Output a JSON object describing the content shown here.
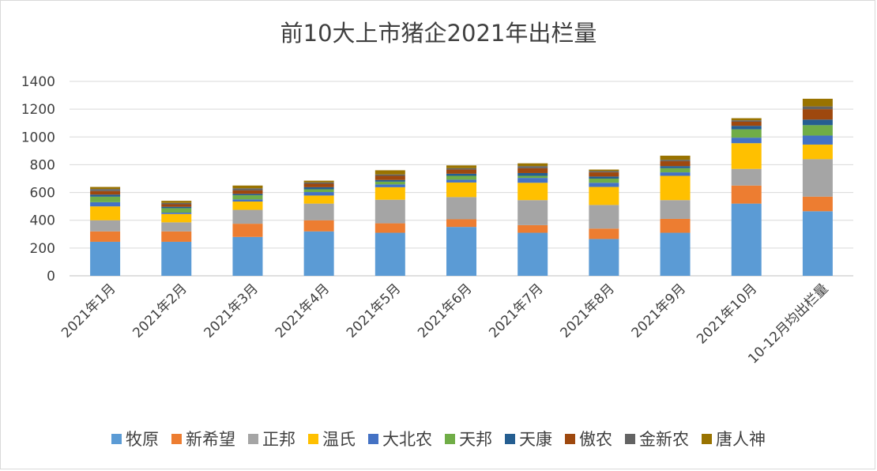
{
  "chart_data": {
    "type": "bar",
    "stacked": true,
    "title": "前10大上市猪企2021年出栏量",
    "xlabel": "",
    "ylabel": "",
    "ylim": [
      0,
      1400
    ],
    "yticks": [
      0,
      200,
      400,
      600,
      800,
      1000,
      1200,
      1400
    ],
    "grid": true,
    "legend_position": "bottom",
    "categories": [
      "2021年1月",
      "2021年2月",
      "2021年3月",
      "2021年4月",
      "2021年5月",
      "2021年6月",
      "2021年7月",
      "2021年8月",
      "2021年9月",
      "2021年10月",
      "10-12月均出栏量"
    ],
    "series": [
      {
        "name": "牧原",
        "color": "#5b9bd5",
        "values": [
          245,
          245,
          280,
          320,
          310,
          352,
          310,
          265,
          310,
          520,
          465
        ]
      },
      {
        "name": "新希望",
        "color": "#ed7d31",
        "values": [
          75,
          75,
          95,
          80,
          68,
          55,
          55,
          75,
          100,
          130,
          105
        ]
      },
      {
        "name": "正邦",
        "color": "#a5a5a5",
        "values": [
          80,
          65,
          100,
          120,
          170,
          160,
          180,
          170,
          135,
          120,
          270
        ]
      },
      {
        "name": "温氏",
        "color": "#ffc000",
        "values": [
          100,
          60,
          60,
          58,
          90,
          105,
          125,
          130,
          175,
          185,
          105
        ]
      },
      {
        "name": "大北农",
        "color": "#4472c4",
        "values": [
          30,
          10,
          15,
          25,
          20,
          20,
          35,
          30,
          25,
          40,
          65
        ]
      },
      {
        "name": "天邦",
        "color": "#70ad47",
        "values": [
          40,
          32,
          30,
          20,
          20,
          28,
          15,
          30,
          30,
          60,
          75
        ]
      },
      {
        "name": "天康",
        "color": "#255e91",
        "values": [
          15,
          10,
          10,
          15,
          12,
          15,
          20,
          15,
          15,
          25,
          40
        ]
      },
      {
        "name": "傲农",
        "color": "#9e480e",
        "values": [
          25,
          18,
          25,
          25,
          30,
          30,
          35,
          30,
          35,
          30,
          75
        ]
      },
      {
        "name": "金新农",
        "color": "#636363",
        "values": [
          15,
          10,
          15,
          10,
          10,
          10,
          15,
          10,
          10,
          10,
          20
        ]
      },
      {
        "name": "唐人神",
        "color": "#997300",
        "values": [
          15,
          15,
          20,
          12,
          30,
          20,
          20,
          10,
          30,
          15,
          55
        ]
      }
    ]
  }
}
